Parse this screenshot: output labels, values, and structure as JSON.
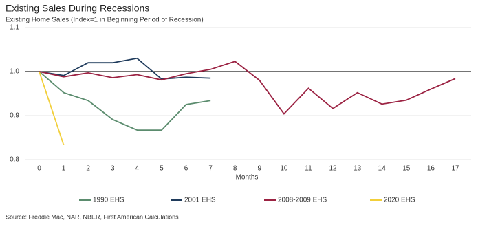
{
  "chart_data": {
    "type": "line",
    "title": "Existing Sales During Recessions",
    "subtitle": "Existing Home Sales (Index=1 in Beginning Period of Recession)",
    "x_label": "Months",
    "source": "Source: Freddie Mac, NAR, NBER, First American Calculations",
    "x": [
      0,
      1,
      2,
      3,
      4,
      5,
      6,
      7,
      8,
      9,
      10,
      11,
      12,
      13,
      14,
      15,
      16,
      17
    ],
    "xlim": [
      0,
      17
    ],
    "xticks": [
      0,
      1,
      2,
      3,
      4,
      5,
      6,
      7,
      8,
      9,
      10,
      11,
      12,
      13,
      14,
      15,
      16,
      17
    ],
    "ylim": [
      0.8,
      1.1
    ],
    "yticks": [
      0.8,
      0.9,
      {
        "value": 1,
        "label": "1.0"
      },
      1.1
    ],
    "grid": true,
    "series": [
      {
        "name": "1990 EHS",
        "color": "#5b8c6e",
        "values": [
          1,
          0.952,
          0.934,
          0.891,
          0.867,
          0.867,
          0.925,
          0.934,
          null,
          null,
          null,
          null,
          null,
          null,
          null,
          null,
          null,
          null
        ]
      },
      {
        "name": "2001 EHS",
        "color": "#1f3b5c",
        "values": [
          1,
          0.991,
          1.02,
          1.02,
          1.03,
          0.983,
          0.987,
          0.985,
          null,
          null,
          null,
          null,
          null,
          null,
          null,
          null,
          null,
          null
        ]
      },
      {
        "name": "2008-2009 EHS",
        "color": "#9b2242",
        "values": [
          1,
          0.988,
          0.997,
          0.986,
          0.993,
          0.981,
          0.995,
          1.005,
          1.023,
          0.98,
          0.904,
          0.962,
          0.916,
          0.952,
          0.926,
          0.935,
          0.96,
          0.984
        ]
      },
      {
        "name": "2020 EHS",
        "color": "#f2cf3a",
        "values": [
          1,
          0.833,
          null,
          null,
          null,
          null,
          null,
          null,
          null,
          null,
          null,
          null,
          null,
          null,
          null,
          null,
          null,
          null
        ]
      }
    ]
  }
}
